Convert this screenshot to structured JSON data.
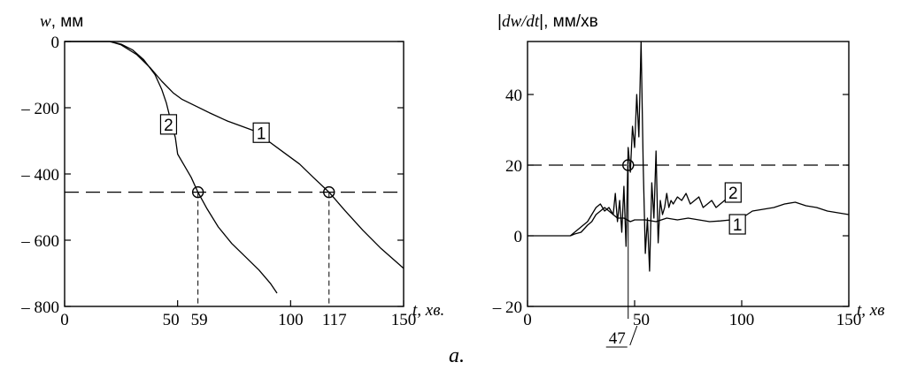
{
  "caption": "a.",
  "chart_data": [
    {
      "type": "line",
      "id": "left",
      "ylabel_var": "w",
      "ylabel_unit": ", мм",
      "xlabel": "t, хв.",
      "xlim": [
        0,
        150
      ],
      "ylim": [
        -800,
        0
      ],
      "xticks": [
        0,
        50,
        100,
        150
      ],
      "xtick_labels": [
        "0",
        "50",
        "100",
        "150"
      ],
      "extra_xtick_labels": [
        {
          "x": 59,
          "label": "59"
        },
        {
          "x": 117,
          "label": "117"
        }
      ],
      "yticks": [
        0,
        -200,
        -400,
        -600,
        -800
      ],
      "ytick_labels": [
        "0",
        "– 200",
        "– 400",
        "– 600",
        "– 800"
      ],
      "threshold": {
        "y": -455
      },
      "intersections": [
        {
          "x": 59,
          "y": -455
        },
        {
          "x": 117,
          "y": -455
        }
      ],
      "series": [
        {
          "name": "1",
          "points": [
            [
              0,
              0
            ],
            [
              20,
              0
            ],
            [
              25,
              -10
            ],
            [
              32,
              -40
            ],
            [
              38,
              -80
            ],
            [
              43,
              -120
            ],
            [
              48,
              -155
            ],
            [
              52,
              -175
            ],
            [
              58,
              -195
            ],
            [
              64,
              -215
            ],
            [
              72,
              -240
            ],
            [
              80,
              -260
            ],
            [
              86,
              -275
            ],
            [
              90,
              -300
            ],
            [
              96,
              -330
            ],
            [
              104,
              -370
            ],
            [
              110,
              -410
            ],
            [
              117,
              -455
            ],
            [
              124,
              -510
            ],
            [
              132,
              -570
            ],
            [
              140,
              -625
            ],
            [
              150,
              -685
            ]
          ],
          "label_at": {
            "x": 87,
            "y": -278
          }
        },
        {
          "name": "2",
          "points": [
            [
              0,
              0
            ],
            [
              20,
              0
            ],
            [
              25,
              -8
            ],
            [
              30,
              -25
            ],
            [
              35,
              -55
            ],
            [
              40,
              -100
            ],
            [
              43,
              -145
            ],
            [
              45,
              -185
            ],
            [
              47,
              -240
            ],
            [
              49,
              -290
            ],
            [
              50,
              -340
            ],
            [
              53,
              -375
            ],
            [
              56,
              -410
            ],
            [
              59,
              -455
            ],
            [
              63,
              -505
            ],
            [
              68,
              -560
            ],
            [
              74,
              -610
            ],
            [
              80,
              -650
            ],
            [
              86,
              -690
            ],
            [
              91,
              -730
            ],
            [
              94,
              -760
            ]
          ],
          "label_at": {
            "x": 46,
            "y": -253
          }
        }
      ]
    },
    {
      "type": "line",
      "id": "right",
      "ylabel_var": "dw/dt",
      "ylabel_unit": ", мм/хв",
      "xlabel": "t, хв",
      "xlim": [
        0,
        150
      ],
      "ylim": [
        -20,
        55
      ],
      "xticks": [
        0,
        50,
        100,
        150
      ],
      "xtick_labels": [
        "0",
        "50",
        "100",
        "150"
      ],
      "extra_xtick_labels": [
        {
          "x": 47,
          "label": "47"
        }
      ],
      "yticks": [
        -20,
        0,
        20,
        40
      ],
      "ytick_labels": [
        "– 20",
        "0",
        "20",
        "40"
      ],
      "threshold": {
        "y": 20
      },
      "intersections": [
        {
          "x": 47,
          "y": 20
        }
      ],
      "series": [
        {
          "name": "1",
          "points": [
            [
              0,
              0
            ],
            [
              20,
              0
            ],
            [
              22,
              0.5
            ],
            [
              25,
              1
            ],
            [
              28,
              3
            ],
            [
              30,
              4
            ],
            [
              32,
              6
            ],
            [
              34,
              7
            ],
            [
              36,
              8
            ],
            [
              38,
              7
            ],
            [
              40,
              6
            ],
            [
              42,
              5
            ],
            [
              45,
              5
            ],
            [
              48,
              4
            ],
            [
              50,
              4.5
            ],
            [
              55,
              4.5
            ],
            [
              60,
              4
            ],
            [
              65,
              5
            ],
            [
              70,
              4.5
            ],
            [
              75,
              5
            ],
            [
              80,
              4.5
            ],
            [
              85,
              4
            ],
            [
              90,
              4.2
            ],
            [
              95,
              4.5
            ],
            [
              100,
              5
            ],
            [
              105,
              7
            ],
            [
              110,
              7.5
            ],
            [
              115,
              8
            ],
            [
              120,
              9
            ],
            [
              125,
              9.5
            ],
            [
              130,
              8.5
            ],
            [
              135,
              8
            ],
            [
              140,
              7
            ],
            [
              145,
              6.5
            ],
            [
              150,
              6
            ]
          ],
          "label_at": {
            "x": 98,
            "y": 3
          }
        },
        {
          "name": "2",
          "points": [
            [
              20,
              0
            ],
            [
              22,
              1
            ],
            [
              24,
              2
            ],
            [
              26,
              3
            ],
            [
              28,
              4
            ],
            [
              30,
              6
            ],
            [
              32,
              8
            ],
            [
              34,
              9
            ],
            [
              36,
              7
            ],
            [
              38,
              8
            ],
            [
              40,
              6
            ],
            [
              41,
              12
            ],
            [
              42,
              4
            ],
            [
              43,
              10
            ],
            [
              44,
              1
            ],
            [
              45,
              14
            ],
            [
              46,
              -3
            ],
            [
              47,
              25
            ],
            [
              48,
              18
            ],
            [
              49,
              31
            ],
            [
              50,
              25
            ],
            [
              51,
              40
            ],
            [
              52,
              28
            ],
            [
              53,
              55
            ],
            [
              54,
              20
            ],
            [
              55,
              -5
            ],
            [
              56,
              5
            ],
            [
              57,
              -10
            ],
            [
              58,
              15
            ],
            [
              59,
              5
            ],
            [
              60,
              24
            ],
            [
              61,
              -2
            ],
            [
              62,
              10
            ],
            [
              63,
              6
            ],
            [
              64,
              8
            ],
            [
              65,
              12
            ],
            [
              66,
              8
            ],
            [
              67,
              10
            ],
            [
              68,
              9
            ],
            [
              70,
              11
            ],
            [
              72,
              10
            ],
            [
              74,
              12
            ],
            [
              76,
              9
            ],
            [
              78,
              10
            ],
            [
              80,
              11
            ],
            [
              82,
              8
            ],
            [
              84,
              9
            ],
            [
              86,
              10
            ],
            [
              88,
              8
            ],
            [
              90,
              9
            ],
            [
              92,
              10
            ],
            [
              95,
              11
            ]
          ],
          "label_at": {
            "x": 96,
            "y": 12
          }
        }
      ]
    }
  ]
}
